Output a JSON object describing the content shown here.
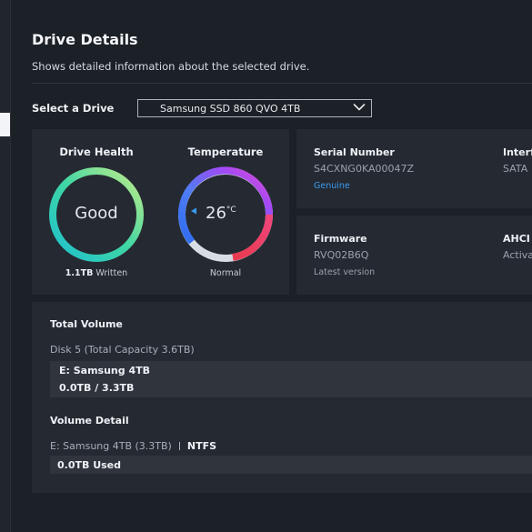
{
  "header": {
    "title": "Drive Details",
    "subtitle": "Shows detailed information about the selected drive."
  },
  "drive_select": {
    "label": "Select a Drive",
    "value": "Samsung SSD 860 QVO 4TB"
  },
  "health": {
    "title": "Drive Health",
    "status": "Good",
    "written_value": "1.1TB",
    "written_label": "Written"
  },
  "temperature": {
    "title": "Temperature",
    "value": "26",
    "unit": "°C",
    "status": "Normal"
  },
  "info": {
    "serial_label": "Serial Number",
    "serial_value": "S4CXNG0KA00047Z",
    "serial_note": "Genuine",
    "interface_label": "Interfa",
    "interface_value": "SATA",
    "firmware_label": "Firmware",
    "firmware_value": "RVQ02B6Q",
    "firmware_note": "Latest version",
    "ahci_label": "AHCI M",
    "ahci_value": "Activa"
  },
  "volume": {
    "total_title": "Total Volume",
    "disk_name": "Disk 5",
    "disk_capacity": "(Total Capacity 3.6TB)",
    "volume_name": "E: Samsung 4TB",
    "volume_usage": "0.0TB / 3.3TB",
    "detail_title": "Volume Detail",
    "detail_volume": "E: Samsung 4TB (3.3TB)",
    "detail_fs": "NTFS",
    "detail_used": "0.0TB Used"
  },
  "colors": {
    "accent_blue": "#3a9bf0",
    "health_ring_start": "#24c8c4",
    "health_ring_end": "#b8e986",
    "temp_ring_blue": "#2f6df0",
    "temp_ring_purple": "#a349f5",
    "temp_ring_red": "#f03a5e",
    "temp_ring_track": "#d8dde4"
  },
  "icons": {
    "dropdown": "chevron-down-icon",
    "temp_marker": "triangle-left-icon"
  }
}
